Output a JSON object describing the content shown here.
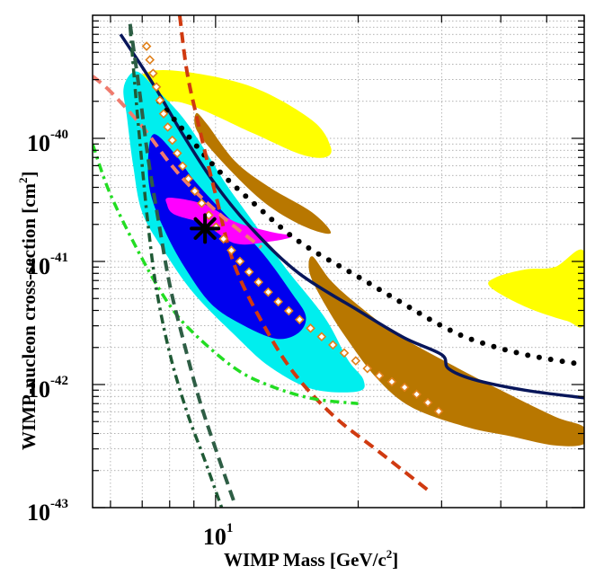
{
  "chart_data": {
    "type": "exclusion-limit-plot",
    "xlabel": "WIMP Mass [GeV/c",
    "xlabel_sup": "2",
    "xlabel_end": "]",
    "ylabel": "WIMP-nucleon cross-section [cm",
    "ylabel_sup": "2",
    "ylabel_end": "]",
    "x_scale": "log",
    "y_scale": "log",
    "xlim": [
      5.5,
      60
    ],
    "ylim": [
      1e-43,
      1e-39
    ],
    "grid": true,
    "x_ticks": [
      {
        "value": 10,
        "base": "10",
        "exp": "1"
      }
    ],
    "y_ticks": [
      {
        "value": 1e-40,
        "base": "10",
        "exp": "-40"
      },
      {
        "value": 1e-41,
        "base": "10",
        "exp": "-41"
      },
      {
        "value": 1e-42,
        "base": "10",
        "exp": "-42"
      },
      {
        "value": 1e-43,
        "base": "10",
        "exp": "-43"
      }
    ],
    "regions": [
      {
        "name": "yellow-region-left",
        "color": "#ffff00",
        "points": [
          [
            6.8,
            1.95e-40
          ],
          [
            8.5,
            1.95e-40
          ],
          [
            12,
            1.1e-40
          ],
          [
            15,
            7.5e-41
          ],
          [
            17,
            7e-41
          ],
          [
            17.5,
            8.5e-41
          ],
          [
            16,
            1.4e-40
          ],
          [
            12,
            2.6e-40
          ],
          [
            8.5,
            3.5e-40
          ],
          [
            7,
            3.3e-40
          ]
        ]
      },
      {
        "name": "yellow-region-right",
        "color": "#ffff00",
        "points": [
          [
            38,
            6.2e-42
          ],
          [
            45,
            4.3e-42
          ],
          [
            55,
            3.3e-42
          ],
          [
            60,
            3.2e-42
          ],
          [
            60,
            1.2e-41
          ],
          [
            52,
            9e-42
          ],
          [
            45,
            8.6e-42
          ],
          [
            39,
            7.4e-42
          ]
        ]
      },
      {
        "name": "cyan-region",
        "color": "#00eeee",
        "points": [
          [
            6.8,
            3.5e-40
          ],
          [
            7.5,
            2.5e-40
          ],
          [
            8.5,
            1.5e-40
          ],
          [
            9.5,
            8e-41
          ],
          [
            10.5,
            4.3e-41
          ],
          [
            12,
            2.1e-41
          ],
          [
            14,
            9e-42
          ],
          [
            17,
            3.5e-42
          ],
          [
            19,
            1.6e-42
          ],
          [
            20.5,
            1.1e-42
          ],
          [
            20,
            8.8e-43
          ],
          [
            16,
            9.2e-43
          ],
          [
            13,
            1.4e-42
          ],
          [
            11,
            2.5e-42
          ],
          [
            9,
            5.5e-42
          ],
          [
            7.8,
            1.2e-41
          ],
          [
            7,
            2.5e-41
          ],
          [
            6.7,
            6e-41
          ],
          [
            6.5,
            1.5e-40
          ],
          [
            6.4,
            2.6e-40
          ]
        ]
      },
      {
        "name": "blue-region",
        "color": "#0000ee",
        "points": [
          [
            7.4,
            1.08e-40
          ],
          [
            8.2,
            7.5e-41
          ],
          [
            9,
            4.6e-41
          ],
          [
            10.5,
            2.4e-41
          ],
          [
            12.5,
            1.2e-41
          ],
          [
            14.5,
            5.5e-42
          ],
          [
            15.5,
            3.6e-42
          ],
          [
            15,
            2.65e-42
          ],
          [
            13.5,
            2.35e-42
          ],
          [
            11.5,
            3e-42
          ],
          [
            9.8,
            4.5e-42
          ],
          [
            8.6,
            9e-42
          ],
          [
            7.8,
            1.8e-41
          ],
          [
            7.3,
            3.5e-41
          ],
          [
            7.2,
            6.5e-41
          ]
        ]
      },
      {
        "name": "magenta-region",
        "color": "#ff00ff",
        "points": [
          [
            8,
            3.3e-41
          ],
          [
            9.5,
            2.9e-41
          ],
          [
            11,
            2.1e-41
          ],
          [
            13,
            1.75e-41
          ],
          [
            14.5,
            1.6e-41
          ],
          [
            13,
            1.45e-41
          ],
          [
            11,
            1.4e-41
          ],
          [
            9.5,
            2e-41
          ],
          [
            8.2,
            2.4e-41
          ],
          [
            7.9,
            2.9e-41
          ]
        ]
      },
      {
        "name": "brown-region-upper",
        "color": "#b87700",
        "points": [
          [
            9.2,
            1.1e-40
          ],
          [
            11,
            5e-41
          ],
          [
            13,
            2.8e-41
          ],
          [
            15.5,
            1.9e-41
          ],
          [
            17.5,
            1.7e-41
          ],
          [
            16,
            2.5e-41
          ],
          [
            13,
            4e-41
          ],
          [
            11,
            6.5e-41
          ],
          [
            9.6,
            1.3e-40
          ],
          [
            9.1,
            1.6e-40
          ]
        ]
      },
      {
        "name": "brown-region-lower",
        "color": "#b87700",
        "points": [
          [
            16,
            1.1e-41
          ],
          [
            17.5,
            7e-42
          ],
          [
            20,
            4.4e-42
          ],
          [
            24,
            2.6e-42
          ],
          [
            30,
            1.6e-42
          ],
          [
            40,
            9e-43
          ],
          [
            52,
            5.5e-43
          ],
          [
            60,
            4.5e-43
          ],
          [
            60,
            3.3e-43
          ],
          [
            52,
            3.2e-43
          ],
          [
            42,
            3.8e-43
          ],
          [
            34,
            4.5e-43
          ],
          [
            26,
            6.5e-43
          ],
          [
            22,
            1.1e-42
          ],
          [
            19,
            2.3e-42
          ],
          [
            17,
            4.5e-42
          ],
          [
            15.8,
            8e-42
          ]
        ]
      }
    ],
    "series": [
      {
        "name": "navy-solid-curve",
        "color": "#08165a",
        "style": "solid",
        "points": [
          [
            6.3,
            7e-40
          ],
          [
            6.8,
            4.5e-40
          ],
          [
            7.5,
            2.5e-40
          ],
          [
            8.5,
            1.1e-40
          ],
          [
            10,
            4.2e-41
          ],
          [
            12,
            1.8e-41
          ],
          [
            15,
            8e-42
          ],
          [
            20,
            4e-42
          ],
          [
            25,
            2.4e-42
          ],
          [
            30,
            1.75e-42
          ],
          [
            31,
            1.35e-42
          ],
          [
            35,
            1.1e-42
          ],
          [
            45,
            9e-43
          ],
          [
            60,
            7.8e-43
          ]
        ]
      },
      {
        "name": "black-dotted-curve",
        "color": "#000000",
        "style": "dots",
        "points": [
          [
            7.6,
            2e-40
          ],
          [
            8.5,
            1.2e-40
          ],
          [
            10,
            5.8e-41
          ],
          [
            12,
            3e-41
          ],
          [
            15,
            1.45e-41
          ],
          [
            20,
            7.5e-42
          ],
          [
            25,
            4.5e-42
          ],
          [
            30,
            3e-42
          ],
          [
            35,
            2.3e-42
          ],
          [
            45,
            1.75e-42
          ],
          [
            60,
            1.45e-42
          ]
        ]
      },
      {
        "name": "red-dashed-curve",
        "color": "#d03a10",
        "style": "dash",
        "points": [
          [
            8.4,
            1e-39
          ],
          [
            8.7,
            3.5e-40
          ],
          [
            9.2,
            1.3e-40
          ],
          [
            10,
            3.5e-41
          ],
          [
            11,
            9e-42
          ],
          [
            13,
            2.5e-42
          ],
          [
            15,
            1.1e-42
          ],
          [
            18,
            5.3e-43
          ],
          [
            22,
            2.9e-43
          ],
          [
            28,
            1.4e-43
          ]
        ]
      },
      {
        "name": "salmon-dashed-curve",
        "color": "#ef7b6e",
        "style": "dash",
        "points": [
          [
            5.5,
            3.2e-40
          ],
          [
            6,
            2.4e-40
          ],
          [
            7,
            1.25e-40
          ],
          [
            8,
            6.3e-41
          ],
          [
            9,
            3.8e-41
          ],
          [
            10.5,
            2.2e-41
          ],
          [
            12.5,
            1.3e-41
          ]
        ]
      },
      {
        "name": "orange-diamond-curve",
        "color": "#e0801a",
        "style": "diamonds",
        "points": [
          [
            7.15,
            5.6e-40
          ],
          [
            7.8,
            1.5e-40
          ],
          [
            8.6,
            5.5e-41
          ],
          [
            9.6,
            2.5e-41
          ],
          [
            11,
            1.12e-41
          ],
          [
            13,
            5.5e-42
          ],
          [
            15,
            3.4e-42
          ],
          [
            18,
            2e-42
          ],
          [
            22,
            1.2e-42
          ],
          [
            26,
            8.8e-43
          ],
          [
            30,
            5.8e-43
          ]
        ]
      },
      {
        "name": "green-dashdot-curve",
        "color": "#22dd22",
        "style": "dashdot",
        "points": [
          [
            5.5,
            9e-41
          ],
          [
            6,
            3.5e-41
          ],
          [
            7,
            1.05e-41
          ],
          [
            8,
            4.4e-42
          ],
          [
            9,
            2.6e-42
          ],
          [
            11,
            1.35e-42
          ],
          [
            13,
            9.8e-43
          ],
          [
            16,
            7.7e-43
          ],
          [
            20,
            7e-43
          ]
        ]
      },
      {
        "name": "darkgreen-dashdot-curve",
        "color": "#1f5a35",
        "style": "dashdot",
        "points": [
          [
            6.6,
            8e-40
          ],
          [
            6.8,
            2e-40
          ],
          [
            7,
            6e-41
          ],
          [
            7.2,
            2e-41
          ],
          [
            7.5,
            6e-42
          ],
          [
            8,
            1.8e-42
          ],
          [
            8.7,
            6e-43
          ],
          [
            9.5,
            2.4e-43
          ],
          [
            10.3,
            1e-43
          ]
        ]
      },
      {
        "name": "darkgreen-dashed-curve",
        "color": "#2e5e45",
        "style": "dash",
        "points": [
          [
            6.6,
            8.5e-40
          ],
          [
            6.9,
            2.5e-40
          ],
          [
            7.2,
            7e-41
          ],
          [
            7.6,
            2e-41
          ],
          [
            8,
            6.5e-42
          ],
          [
            8.5,
            2.5e-42
          ],
          [
            9.2,
            8e-43
          ],
          [
            10,
            3e-43
          ],
          [
            11,
            1.05e-43
          ]
        ]
      }
    ],
    "marker": {
      "name": "best-fit-star",
      "x": 9.5,
      "y": 1.85e-41,
      "color": "#000000"
    }
  }
}
